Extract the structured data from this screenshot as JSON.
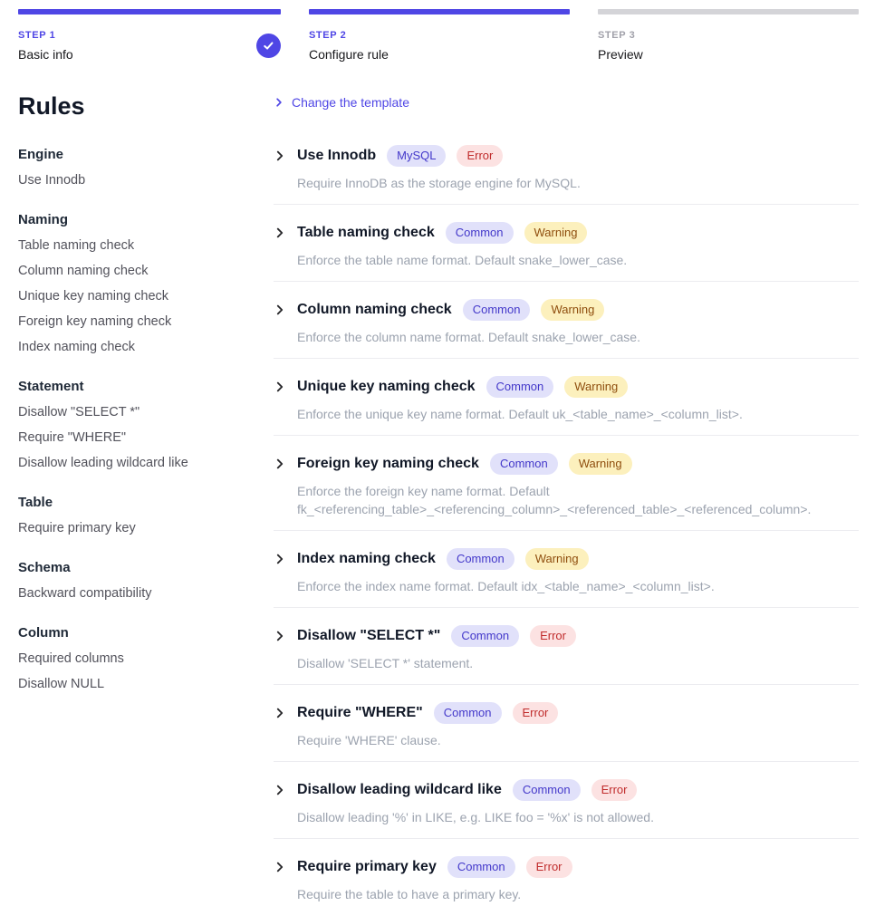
{
  "stepper": {
    "steps": [
      {
        "step_label": "STEP 1",
        "title": "Basic info",
        "state": "completed"
      },
      {
        "step_label": "STEP 2",
        "title": "Configure rule",
        "state": "active"
      },
      {
        "step_label": "STEP 3",
        "title": "Preview",
        "state": "upcoming"
      }
    ]
  },
  "sidebar": {
    "heading": "Rules",
    "groups": [
      {
        "title": "Engine",
        "items": [
          "Use Innodb"
        ]
      },
      {
        "title": "Naming",
        "items": [
          "Table naming check",
          "Column naming check",
          "Unique key naming check",
          "Foreign key naming check",
          "Index naming check"
        ]
      },
      {
        "title": "Statement",
        "items": [
          "Disallow \"SELECT *\"",
          "Require \"WHERE\"",
          "Disallow leading wildcard like"
        ]
      },
      {
        "title": "Table",
        "items": [
          "Require primary key"
        ]
      },
      {
        "title": "Schema",
        "items": [
          "Backward compatibility"
        ]
      },
      {
        "title": "Column",
        "items": [
          "Required columns",
          "Disallow NULL"
        ]
      }
    ]
  },
  "main": {
    "change_template_label": "Change the template",
    "rules": [
      {
        "title": "Use Innodb",
        "badges": [
          {
            "label": "MySQL",
            "type": "indigo"
          },
          {
            "label": "Error",
            "type": "error"
          }
        ],
        "description": "Require InnoDB as the storage engine for MySQL."
      },
      {
        "title": "Table naming check",
        "badges": [
          {
            "label": "Common",
            "type": "indigo"
          },
          {
            "label": "Warning",
            "type": "warning"
          }
        ],
        "description": "Enforce the table name format. Default snake_lower_case."
      },
      {
        "title": "Column naming check",
        "badges": [
          {
            "label": "Common",
            "type": "indigo"
          },
          {
            "label": "Warning",
            "type": "warning"
          }
        ],
        "description": "Enforce the column name format. Default snake_lower_case."
      },
      {
        "title": "Unique key naming check",
        "badges": [
          {
            "label": "Common",
            "type": "indigo"
          },
          {
            "label": "Warning",
            "type": "warning"
          }
        ],
        "description": "Enforce the unique key name format. Default uk_<table_name>_<column_list>."
      },
      {
        "title": "Foreign key naming check",
        "badges": [
          {
            "label": "Common",
            "type": "indigo"
          },
          {
            "label": "Warning",
            "type": "warning"
          }
        ],
        "description": "Enforce the foreign key name format. Default fk_<referencing_table>_<referencing_column>_<referenced_table>_<referenced_column>."
      },
      {
        "title": "Index naming check",
        "badges": [
          {
            "label": "Common",
            "type": "indigo"
          },
          {
            "label": "Warning",
            "type": "warning"
          }
        ],
        "description": "Enforce the index name format. Default idx_<table_name>_<column_list>."
      },
      {
        "title": "Disallow \"SELECT *\"",
        "badges": [
          {
            "label": "Common",
            "type": "indigo"
          },
          {
            "label": "Error",
            "type": "error"
          }
        ],
        "description": "Disallow 'SELECT *' statement."
      },
      {
        "title": "Require \"WHERE\"",
        "badges": [
          {
            "label": "Common",
            "type": "indigo"
          },
          {
            "label": "Error",
            "type": "error"
          }
        ],
        "description": "Require 'WHERE' clause."
      },
      {
        "title": "Disallow leading wildcard like",
        "badges": [
          {
            "label": "Common",
            "type": "indigo"
          },
          {
            "label": "Error",
            "type": "error"
          }
        ],
        "description": "Disallow leading '%' in LIKE, e.g. LIKE foo = '%x' is not allowed."
      },
      {
        "title": "Require primary key",
        "badges": [
          {
            "label": "Common",
            "type": "indigo"
          },
          {
            "label": "Error",
            "type": "error"
          }
        ],
        "description": "Require the table to have a primary key."
      }
    ]
  },
  "colors": {
    "accent": "#4f46e5",
    "upcoming_bar": "#d4d4d8",
    "badge_indigo_bg": "#e1e1fa",
    "badge_indigo_text": "#4338ca",
    "badge_error_bg": "#fce2e2",
    "badge_error_text": "#c02c2c",
    "badge_warning_bg": "#fcf0bd",
    "badge_warning_text": "#8f4e0e",
    "description_text": "#9ca3af"
  }
}
